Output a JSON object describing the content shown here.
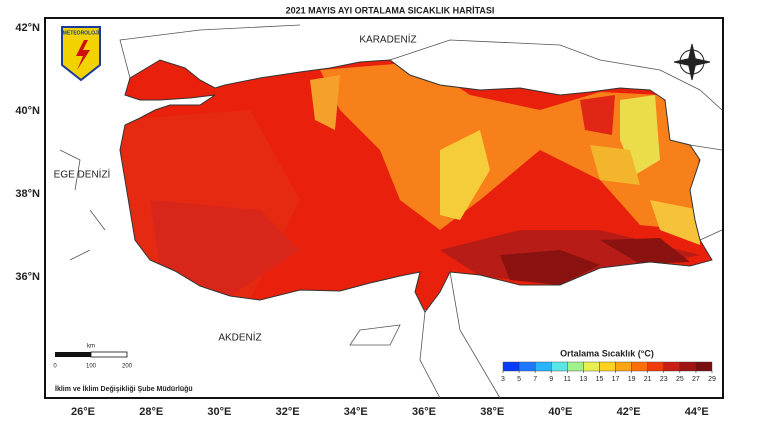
{
  "title": "2021 MAYIS AYI ORTALAMA SICAKLIK HARİTASI",
  "logo": "METEOROLOJİ",
  "seas": [
    "KARADENİZ",
    "EGE DENİZİ",
    "AKDENİZ"
  ],
  "lat_labels": [
    "42°N",
    "40°N",
    "38°N",
    "36°N"
  ],
  "lon_labels": [
    "26°E",
    "28°E",
    "30°E",
    "32°E",
    "34°E",
    "36°E",
    "38°E",
    "40°E",
    "42°E",
    "44°E"
  ],
  "scale_bar": {
    "unit": "km",
    "labels": [
      "0",
      "100",
      "200"
    ]
  },
  "footer": "İklim ve İklim Değişikliği Şube Müdürlüğü",
  "legend": {
    "title": "Ortalama Sıcaklık (°C)",
    "ticks": [
      3,
      5,
      7,
      9,
      11,
      13,
      15,
      17,
      19,
      21,
      23,
      25,
      27,
      29
    ],
    "colors": [
      "#0a3cff",
      "#1e78ff",
      "#28b4ff",
      "#5ae6e6",
      "#a0f08c",
      "#e6f050",
      "#ffd21e",
      "#ffa514",
      "#ff6e0a",
      "#f03c0a",
      "#c81e14",
      "#a01414",
      "#781010"
    ]
  }
}
